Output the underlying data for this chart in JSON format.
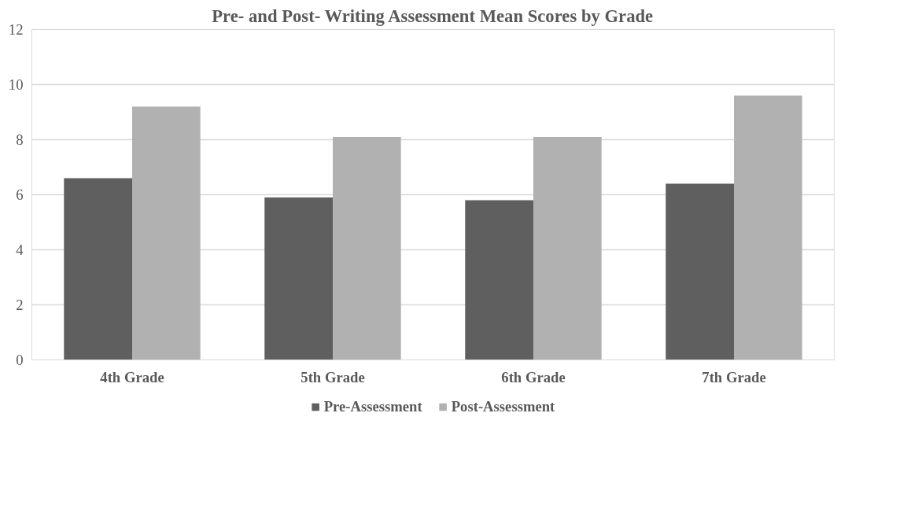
{
  "chart_data": {
    "type": "bar",
    "title": "Pre- and Post- Writing Assessment Mean Scores by Grade",
    "categories": [
      "4th Grade",
      "5th Grade",
      "6th Grade",
      "7th Grade"
    ],
    "series": [
      {
        "name": "Pre-Assessment",
        "color": "#5f5f5f",
        "values": [
          6.6,
          5.9,
          5.8,
          6.4
        ]
      },
      {
        "name": "Post-Assessment",
        "color": "#b1b1b1",
        "values": [
          9.2,
          8.1,
          8.1,
          9.6
        ]
      }
    ],
    "ylim": [
      0,
      12
    ],
    "yticks": [
      0,
      2,
      4,
      6,
      8,
      10,
      12
    ],
    "grid": "y",
    "legend": "bottom"
  }
}
